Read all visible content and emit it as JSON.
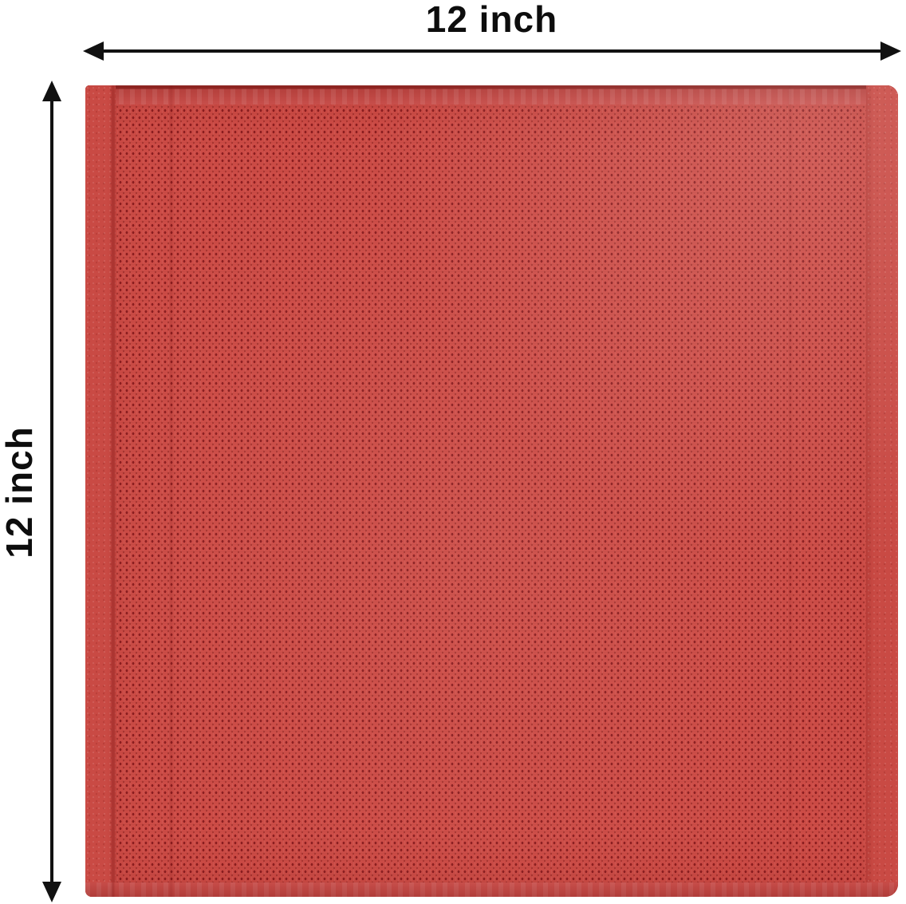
{
  "title": "Product dimension diagram",
  "product": {
    "description": "red waffle-weave square towel shown flat",
    "texture": "pin-dot waffle weave with smooth hem and selvage edges"
  },
  "dimensions": {
    "width_label": "12 inch",
    "height_label": "12 inch"
  },
  "colors": {
    "canvas_bg": "#ffffff",
    "arrow": "#111111",
    "label_text": "#0d0d0d",
    "towel_base": "#cd4c46",
    "towel_dot": "#8c1f21",
    "towel_dot_soft": "#a83531",
    "towel_hem": "#c4433f",
    "towel_hem_line": "#8d2421",
    "towel_selvage": "#c94a44"
  }
}
